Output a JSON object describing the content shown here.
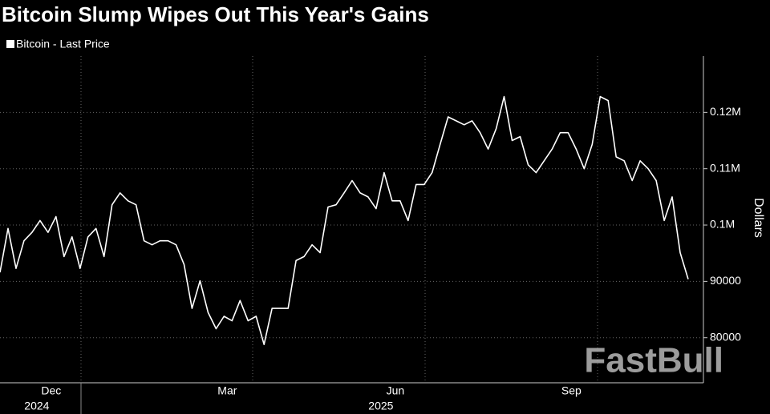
{
  "chart_data": {
    "type": "line",
    "title": "Bitcoin Slump Wipes Out This Year's Gains",
    "y_label": "Dollars",
    "watermark": "FastBull",
    "categories": [
      null,
      null,
      null,
      null,
      null,
      null,
      "Dec",
      null,
      null,
      null,
      null,
      null,
      null,
      null,
      null,
      null,
      null,
      null,
      null,
      null,
      null,
      null,
      null,
      null,
      null,
      null,
      null,
      null,
      "Mar",
      null,
      null,
      null,
      null,
      null,
      null,
      null,
      null,
      null,
      null,
      null,
      null,
      null,
      null,
      null,
      null,
      null,
      null,
      null,
      null,
      "Jun",
      null,
      null,
      null,
      null,
      null,
      null,
      null,
      null,
      null,
      null,
      null,
      null,
      null,
      null,
      null,
      null,
      null,
      null,
      null,
      null,
      null,
      "Sep",
      null,
      null,
      null,
      null,
      null,
      null,
      null,
      null,
      null,
      null,
      null,
      null,
      null,
      null,
      null
    ],
    "years": [
      null,
      null,
      null,
      null,
      null,
      null,
      "2024",
      null,
      null,
      null,
      null,
      null,
      null,
      null,
      null,
      null,
      null,
      null,
      null,
      null,
      null,
      null,
      null,
      null,
      null,
      null,
      null,
      null,
      null,
      null,
      null,
      null,
      null,
      null,
      null,
      null,
      null,
      null,
      null,
      null,
      null,
      null,
      null,
      null,
      null,
      null,
      null,
      null,
      null,
      "2025",
      null,
      null,
      null,
      null,
      null,
      null,
      null,
      null,
      null,
      null,
      null,
      null,
      null,
      null,
      null,
      null,
      null,
      null,
      null,
      null,
      null,
      null,
      null,
      null,
      null,
      null,
      null,
      null,
      null,
      null,
      null,
      null,
      null,
      null,
      null,
      null,
      null
    ],
    "series": [
      {
        "name": "Bitcoin - Last Price",
        "color": "#ffffff",
        "values": [
          91600,
          99400,
          92300,
          97200,
          98700,
          100800,
          98700,
          101500,
          94400,
          97900,
          92300,
          97900,
          99400,
          94400,
          103600,
          105700,
          104300,
          103600,
          97200,
          96500,
          97200,
          97200,
          96500,
          93000,
          85200,
          90100,
          84500,
          81600,
          83800,
          83000,
          86600,
          83000,
          83800,
          78800,
          85200,
          85200,
          85200,
          93700,
          94400,
          96500,
          95100,
          103200,
          103600,
          105700,
          107900,
          105700,
          105000,
          102900,
          109300,
          104300,
          104300,
          100800,
          107200,
          107200,
          109300,
          114300,
          119200,
          118500,
          117800,
          118500,
          116400,
          113500,
          117100,
          122800,
          115000,
          115700,
          110700,
          109300,
          111400,
          113500,
          116400,
          116400,
          113500,
          110000,
          114300,
          122800,
          122100,
          112100,
          111400,
          107900,
          111400,
          110000,
          107900,
          100800,
          105000,
          95100,
          90400
        ]
      }
    ],
    "ylim": [
      72000,
      130000
    ],
    "yticks": [
      80000,
      90000,
      {
        "value": 100000,
        "label": "0.1M"
      },
      {
        "value": 110000,
        "label": "0.11M"
      },
      {
        "value": 120000,
        "label": "0.12M"
      }
    ],
    "grid": true
  }
}
